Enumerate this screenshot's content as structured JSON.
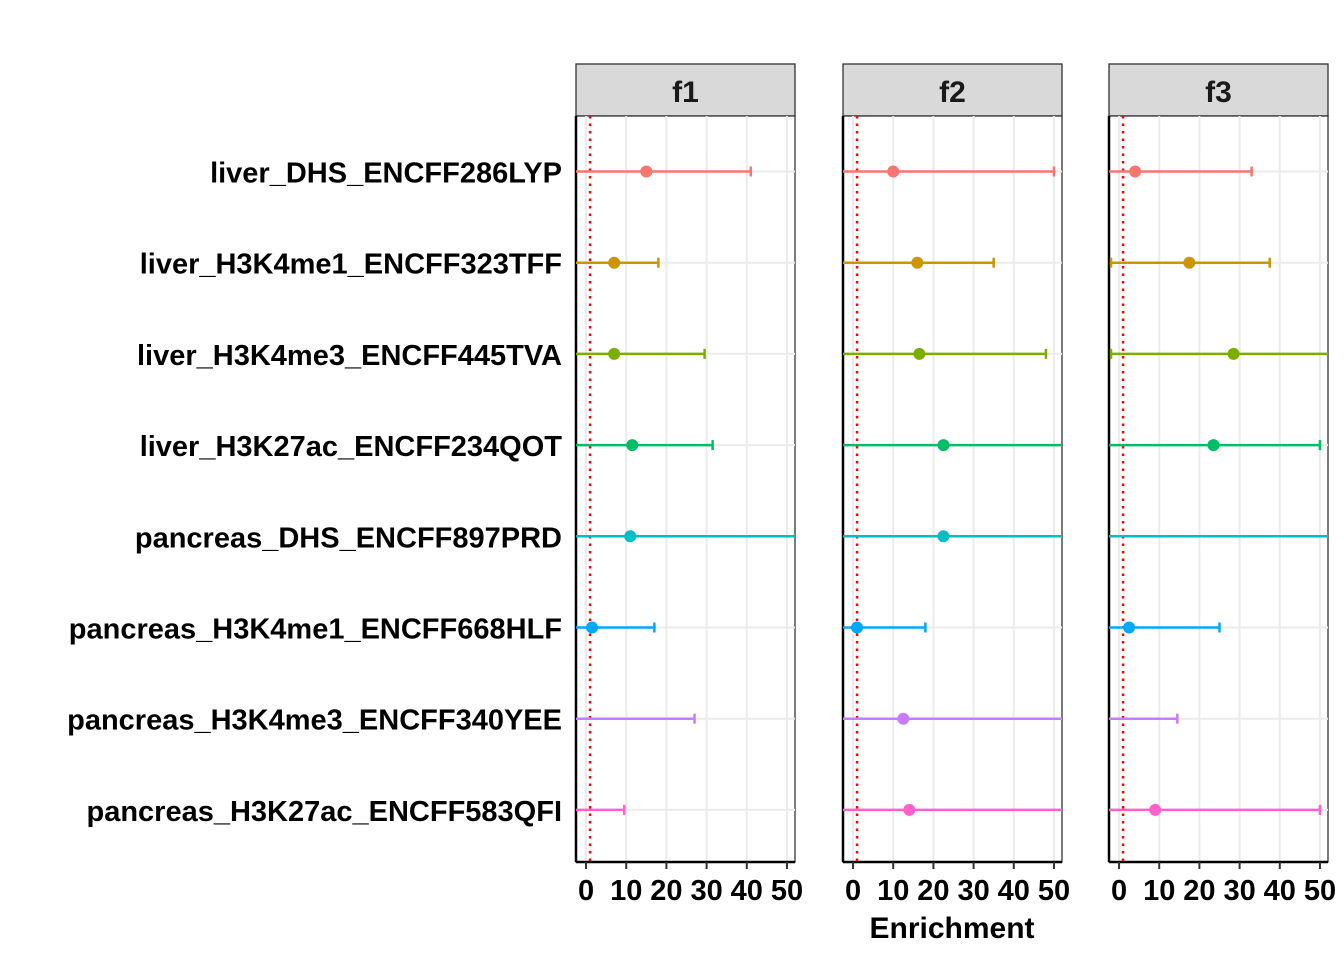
{
  "chart_data": {
    "type": "forest",
    "xlabel": "Enrichment",
    "xlim": [
      -2.5,
      52
    ],
    "x_ticks": [
      0,
      10,
      20,
      30,
      40,
      50
    ],
    "reference_line": {
      "x": 1,
      "color": "#ff0000",
      "style": "dotted"
    },
    "categories": [
      "liver_DHS_ENCFF286LYP",
      "liver_H3K4me1_ENCFF323TFF",
      "liver_H3K4me3_ENCFF445TVA",
      "liver_H3K27ac_ENCFF234QOT",
      "pancreas_DHS_ENCFF897PRD",
      "pancreas_H3K4me1_ENCFF668HLF",
      "pancreas_H3K4me3_ENCFF340YEE",
      "pancreas_H3K27ac_ENCFF583QFI"
    ],
    "colors": [
      "#F8766D",
      "#CD9600",
      "#7CAE00",
      "#00BE67",
      "#00BFC4",
      "#00A9FF",
      "#C77CFF",
      "#FF61CC"
    ],
    "panels": [
      {
        "name": "f1",
        "points": [
          {
            "est": 15,
            "lo": -2.5,
            "hi": 41
          },
          {
            "est": 7,
            "lo": -2.5,
            "hi": 18
          },
          {
            "est": 7,
            "lo": -2.5,
            "hi": 29.5
          },
          {
            "est": 11.5,
            "lo": -2.5,
            "hi": 31.5
          },
          {
            "est": 11,
            "lo": -2.5,
            "hi": 52
          },
          {
            "est": 1.5,
            "lo": -2.5,
            "hi": 17
          },
          {
            "est": null,
            "lo": -2.5,
            "hi": 27
          },
          {
            "est": null,
            "lo": -2.5,
            "hi": 9.5
          }
        ]
      },
      {
        "name": "f2",
        "points": [
          {
            "est": 10,
            "lo": -2.5,
            "hi": 50
          },
          {
            "est": 16,
            "lo": -2.5,
            "hi": 35
          },
          {
            "est": 16.5,
            "lo": -2.5,
            "hi": 48
          },
          {
            "est": 22.5,
            "lo": -2.5,
            "hi": 52
          },
          {
            "est": 22.5,
            "lo": -2.5,
            "hi": 52
          },
          {
            "est": 1,
            "lo": -2.5,
            "hi": 18
          },
          {
            "est": 12.5,
            "lo": -2.5,
            "hi": 52
          },
          {
            "est": 14,
            "lo": -2.5,
            "hi": 52
          }
        ]
      },
      {
        "name": "f3",
        "points": [
          {
            "est": 4,
            "lo": -2.5,
            "hi": 33
          },
          {
            "est": 17.5,
            "lo": -2,
            "hi": 37.5
          },
          {
            "est": 28.5,
            "lo": -2,
            "hi": 52
          },
          {
            "est": 23.5,
            "lo": -2.5,
            "hi": 50
          },
          {
            "est": null,
            "lo": -2.5,
            "hi": 52
          },
          {
            "est": 2.5,
            "lo": -2.5,
            "hi": 25
          },
          {
            "est": null,
            "lo": -2.5,
            "hi": 14.5
          },
          {
            "est": 9,
            "lo": -2.5,
            "hi": 50
          }
        ]
      }
    ]
  }
}
